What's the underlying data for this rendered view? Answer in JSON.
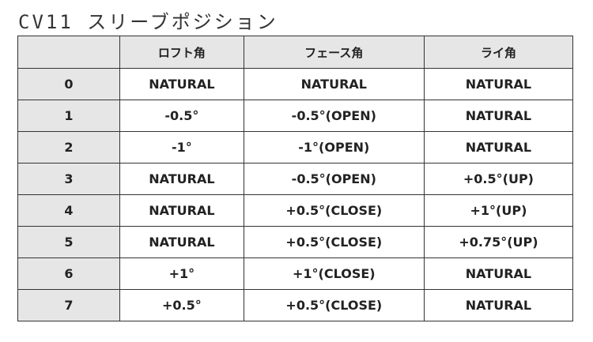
{
  "title": "CV11 スリーブポジション",
  "table": {
    "headers": [
      "",
      "ロフト角",
      "フェース角",
      "ライ角"
    ],
    "rows": [
      [
        "0",
        "NATURAL",
        "NATURAL",
        "NATURAL"
      ],
      [
        "1",
        "-0.5°",
        "-0.5°(OPEN)",
        "NATURAL"
      ],
      [
        "2",
        "-1°",
        "-1°(OPEN)",
        "NATURAL"
      ],
      [
        "3",
        "NATURAL",
        "-0.5°(OPEN)",
        "+0.5°(UP)"
      ],
      [
        "4",
        "NATURAL",
        "+0.5°(CLOSE)",
        "+1°(UP)"
      ],
      [
        "5",
        "NATURAL",
        "+0.5°(CLOSE)",
        "+0.75°(UP)"
      ],
      [
        "6",
        "+1°",
        "+1°(CLOSE)",
        "NATURAL"
      ],
      [
        "7",
        "+0.5°",
        "+0.5°(CLOSE)",
        "NATURAL"
      ]
    ]
  }
}
